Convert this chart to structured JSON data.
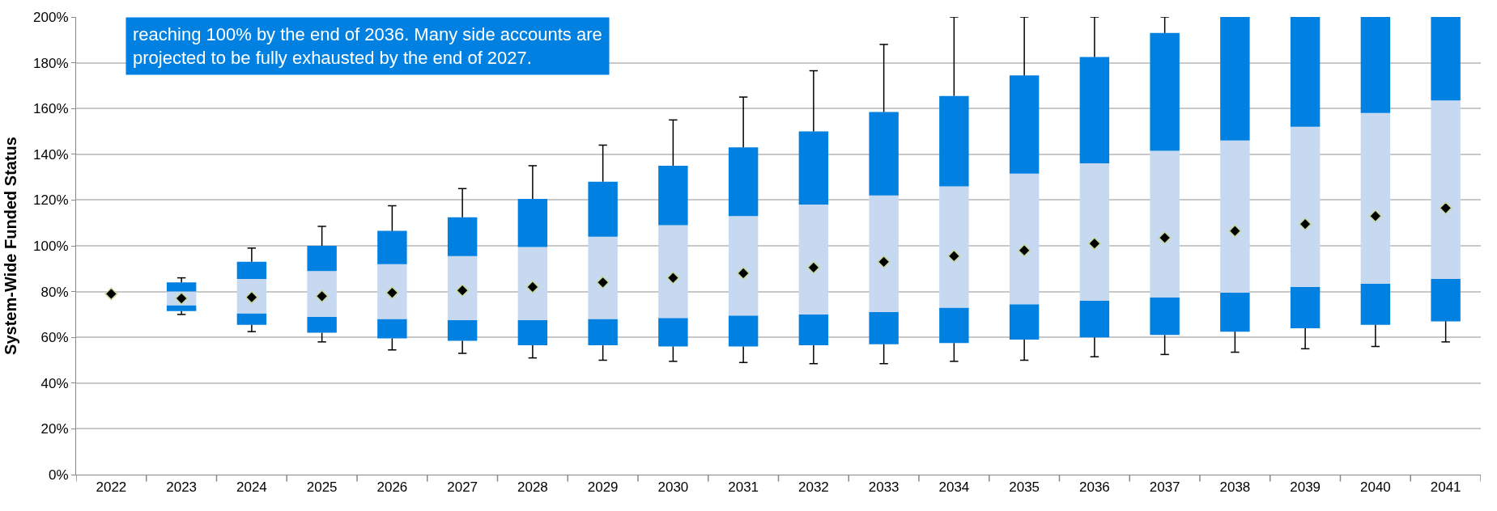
{
  "chart_data": {
    "type": "bar",
    "ylabel": "System-Wide Funded Status",
    "annotations": [
      "reaching 100% by the end of 2036. Many side accounts are\nprojected to be fully exhausted by the end of 2027."
    ],
    "categories": [
      "2022",
      "2023",
      "2024",
      "2025",
      "2026",
      "2027",
      "2028",
      "2029",
      "2030",
      "2031",
      "2032",
      "2033",
      "2034",
      "2035",
      "2036",
      "2037",
      "2038",
      "2039",
      "2040",
      "2041"
    ],
    "series": [
      {
        "color": "#0080e0",
        "base": [
          null,
          71.5,
          65.5,
          62,
          59.5,
          58.5,
          56.5,
          56.5,
          56,
          56,
          56.5,
          57,
          57.5,
          59,
          60,
          61,
          62.5,
          64,
          65.5,
          67
        ],
        "values": [
          null,
          2.5,
          5,
          7,
          8.5,
          9,
          11,
          11.5,
          12.5,
          13.5,
          13.5,
          14,
          15.5,
          15.5,
          16,
          16.5,
          17,
          18,
          18,
          18.5
        ],
        "errors": [
          null,
          [
            70,
            71.5
          ],
          [
            62.5,
            65.5
          ],
          [
            58,
            62
          ],
          [
            54.5,
            59.5
          ],
          [
            53,
            58.5
          ],
          [
            51,
            56.5
          ],
          [
            50,
            56.5
          ],
          [
            49.5,
            56
          ],
          [
            49,
            56
          ],
          [
            48.5,
            56.5
          ],
          [
            48.5,
            57
          ],
          [
            49.5,
            57.5
          ],
          [
            50,
            59
          ],
          [
            51.5,
            60
          ],
          [
            52.5,
            61
          ],
          [
            53.5,
            62.5
          ],
          [
            55,
            64
          ],
          [
            56,
            65.5
          ],
          [
            58,
            67
          ]
        ]
      },
      {
        "color": "#c6d9f0",
        "base": [
          null,
          74,
          70.5,
          69,
          68,
          67.5,
          67.5,
          68,
          68.5,
          69.5,
          70,
          71,
          73,
          74.5,
          76,
          77.5,
          79.5,
          82,
          83.5,
          85.5
        ],
        "values": [
          null,
          6,
          15,
          20,
          24,
          28,
          32,
          36,
          40.5,
          43.5,
          48,
          51,
          53,
          57,
          60,
          64,
          66.5,
          70,
          74.5,
          78
        ]
      },
      {
        "color": "#0080e0",
        "base": [
          null,
          80,
          85.5,
          89,
          92,
          95.5,
          99.5,
          104,
          109,
          113,
          118,
          122,
          126,
          131.5,
          136,
          141.5,
          146,
          152,
          158,
          163.5
        ],
        "values": [
          null,
          4,
          7.5,
          11,
          14.5,
          17,
          21,
          24,
          26,
          30,
          32,
          36.5,
          39.5,
          43,
          46.5,
          51.5,
          54,
          48,
          42,
          36.5
        ],
        "errors": [
          null,
          [
            84,
            86
          ],
          [
            93,
            99
          ],
          [
            100,
            108.5
          ],
          [
            106.5,
            117.5
          ],
          [
            112.5,
            125
          ],
          [
            120.5,
            135
          ],
          [
            128,
            144
          ],
          [
            135,
            155
          ],
          [
            143,
            165
          ],
          [
            150,
            176.5
          ],
          [
            158.5,
            188
          ],
          [
            165.5,
            200
          ],
          [
            174.5,
            200
          ],
          [
            182.5,
            200
          ],
          [
            193,
            200
          ],
          null,
          null,
          null,
          null
        ]
      },
      {
        "type": "scatter",
        "marker": "diamond",
        "color": "#000000",
        "values": [
          79,
          77,
          77.5,
          78,
          79.5,
          80.5,
          82,
          84,
          86,
          88,
          90.5,
          93,
          95.5,
          98,
          101,
          103.5,
          106.5,
          109.5,
          113,
          116.5
        ]
      }
    ],
    "ylim": [
      0,
      200
    ],
    "yticks": [
      {
        "value": 0,
        "label": "0%"
      },
      {
        "value": 20,
        "label": "20%"
      },
      {
        "value": 40,
        "label": "40%"
      },
      {
        "value": 60,
        "label": "60%"
      },
      {
        "value": 80,
        "label": "80%"
      },
      {
        "value": 100,
        "label": "100%"
      },
      {
        "value": 120,
        "label": "120%"
      },
      {
        "value": 140,
        "label": "140%"
      },
      {
        "value": 160,
        "label": "160%"
      },
      {
        "value": 180,
        "label": "180%"
      },
      {
        "value": 200,
        "label": "200%"
      }
    ],
    "grid": "y"
  }
}
